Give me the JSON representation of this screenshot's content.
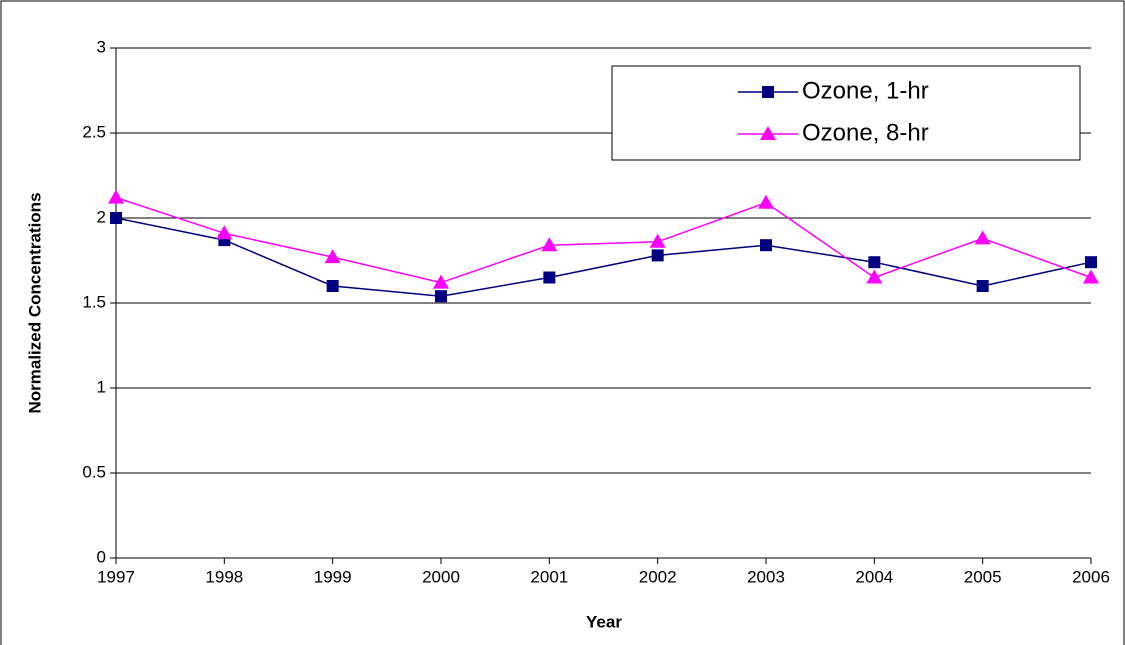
{
  "chart_data": {
    "type": "line",
    "x_label": "Year",
    "y_label": "Normalized Concentrations",
    "x": [
      1997,
      1998,
      1999,
      2000,
      2001,
      2002,
      2003,
      2004,
      2005,
      2006
    ],
    "series": [
      {
        "name": "Ozone, 1-hr",
        "color": "#000080",
        "marker": "square",
        "values": [
          2.0,
          1.87,
          1.6,
          1.54,
          1.65,
          1.78,
          1.84,
          1.74,
          1.6,
          1.74
        ]
      },
      {
        "name": "Ozone, 8-hr",
        "color": "#ff00ff",
        "marker": "triangle",
        "values": [
          2.12,
          1.91,
          1.77,
          1.62,
          1.84,
          1.86,
          2.09,
          1.65,
          1.88,
          1.65
        ]
      }
    ],
    "xlim": [
      1997,
      2006
    ],
    "xticks": [
      1997,
      1998,
      1999,
      2000,
      2001,
      2002,
      2003,
      2004,
      2005,
      2006
    ],
    "ylim": [
      0,
      3
    ],
    "yticks": [
      0,
      0.5,
      1,
      1.5,
      2,
      2.5,
      3
    ],
    "grid": true,
    "legend": "upper right"
  }
}
